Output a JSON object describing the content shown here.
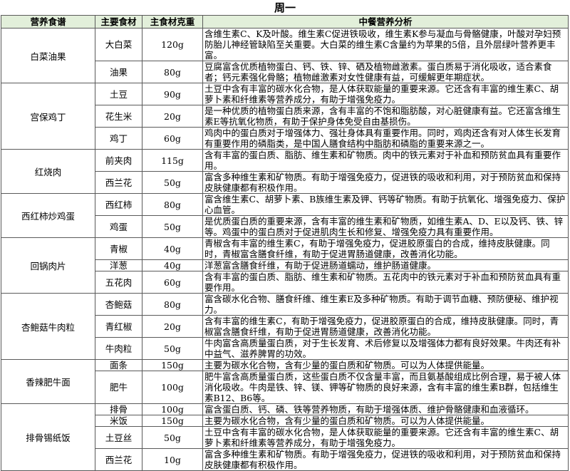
{
  "title": "周一",
  "table": {
    "headers": {
      "dish": "营养食谱",
      "ingredient": "主要食材",
      "weight": "主食材克重",
      "analysis": "中餐营养分析"
    },
    "header_bg_color": "#e2efda",
    "dishes": [
      {
        "name": "白菜油果",
        "ingredients": [
          {
            "name": "大白菜",
            "weight": "120g",
            "analysis": "含维生素C、K及叶酸。维生素C促进铁吸收，维生素K参与凝血与骨骼健康，叶酸对孕妇预防胎儿神经管缺陷至关重要。大白菜的维生素C含量约为苹果的5倍，且外层绿叶营养更丰富。"
          },
          {
            "name": "油果",
            "weight": "80g",
            "analysis": "豆腐富含优质植物蛋白、钙、铁、锌、硒及植物雌激素。蛋白质易于消化吸收，适合素食者；钙元素强化骨骼；植物雌激素对女性健康有益，可缓解更年期症状。"
          }
        ]
      },
      {
        "name": "宫保鸡丁",
        "ingredients": [
          {
            "name": "土豆",
            "weight": "90g",
            "analysis": "土豆中含有丰富的碳水化合物，是人体获取能量的重要来源。它还含有丰富的维生素C、胡萝卜素和纤维素等营养成分，有助于增强免疫力。"
          },
          {
            "name": "花生米",
            "weight": "20g",
            "analysis": "是一种优质的植物蛋白质来源，含有丰富的不饱和脂肪酸，对心脏健康有益。它还富含维生素E等抗氧化物质，有助于保护身体免受自由基损伤。"
          },
          {
            "name": "鸡丁",
            "weight": "60g",
            "analysis": "鸡肉中的蛋白质对于增强体力、强壮身体具有重要作用。同时，鸡肉还含有对人体生长发育有重要作用的磷脂类，是中国人膳食结构中脂肪和磷脂的重要来源之一。"
          }
        ]
      },
      {
        "name": "红烧肉",
        "ingredients": [
          {
            "name": "前夹肉",
            "weight": "115g",
            "analysis": "含有丰富的蛋白质、脂肪、维生素和矿物质。肉中的铁元素对于补血和预防贫血具有重要作用。"
          },
          {
            "name": "西兰花",
            "weight": "50g",
            "analysis": "富含多种维生素和矿物质。有助于增强免疫力，促进铁的吸收和利用，对于预防贫血和保持皮肤健康都有积极作用。"
          }
        ]
      },
      {
        "name": "西红柿炒鸡蛋",
        "ingredients": [
          {
            "name": "西红柿",
            "weight": "80g",
            "analysis": "富含维生素C、胡萝卜素、B族维生素及钾、钙等矿物质。有助于抗氧化、增强免疫力、保护心血管。"
          },
          {
            "name": "鸡蛋",
            "weight": "50g",
            "analysis": "是优质蛋白质的重要来源，含有丰富的维生素和矿物质，如维生素A、D、E以及钙、铁、锌等。鸡蛋中的蛋白质对于促进肌肉生长和修复、增强免疫力具有重要作用。"
          }
        ]
      },
      {
        "name": "回锅肉片",
        "ingredients": [
          {
            "name": "青椒",
            "weight": "40g",
            "analysis": "青椒含有丰富的维生素C，有助于增强免疫力，促进胶原蛋白的合成，维持皮肤健康。同时，青椒富含膳食纤维，有助于促进胃肠道健康，改善消化功能。"
          },
          {
            "name": "洋葱",
            "weight": "40g",
            "analysis": "洋葱富含膳食纤维，有助于促进肠道蠕动，维护肠道健康。"
          },
          {
            "name": "五花肉",
            "weight": "60g",
            "analysis": "含有丰富的蛋白质、脂肪、维生素和矿物质。五花肉中的铁元素对于补血和预防贫血具有重要作用。"
          }
        ]
      },
      {
        "name": "杏鲍菇牛肉粒",
        "ingredients": [
          {
            "name": "杏鲍菇",
            "weight": "80g",
            "analysis": "富含碳水化合物、膳食纤维、维生素E及多种矿物质。有助于调节血糖、预防便秘、维护视力。"
          },
          {
            "name": "青红椒",
            "weight": "20g",
            "analysis": "含有丰富的维生素C，有助于增强免疫力，促进胶原蛋白的合成，维持皮肤健康。同时，青椒富含膳食纤维，有助于促进胃肠道健康，改善消化功能。"
          },
          {
            "name": "牛肉粒",
            "weight": "50g",
            "analysis": "牛肉富含高质量蛋白质，对于生长发育、术后修复以及增强体力都有良好效果。牛肉还有补中益气、滋养脾胃的功效。"
          }
        ]
      },
      {
        "name": "香辣肥牛面",
        "ingredients": [
          {
            "name": "面条",
            "weight": "150g",
            "analysis": "主要为碳水化合物，含有少量的蛋白质和矿物质。可以为人体提供能量。"
          },
          {
            "name": "肥牛",
            "weight": "100g",
            "analysis": "肥牛富含高质量蛋白质，这些蛋白质不仅含量丰富，而且氨基酸组成比例合理，易于被人体消化吸收。牛肉是铁、锌、镁、钾等矿物质的良好来源，含有丰富的维生素B群，包括维生素B12、B6等。"
          }
        ]
      },
      {
        "name": "排骨锡纸饭",
        "ingredients": [
          {
            "name": "排骨",
            "weight": "100g",
            "analysis": "富含蛋白质、钙、磷、铁等营养物质，有助于增强体质、维护骨骼健康和血液循环。"
          },
          {
            "name": "米饭",
            "weight": "150g",
            "analysis": "主要为碳水化合物，含有少量的蛋白质和矿物质。可以为人体提供能量。"
          },
          {
            "name": "土豆丝",
            "weight": "50g",
            "analysis": "土豆中含有丰富的碳水化合物，是人体获取能量的重要来源。它还含有丰富的维生素C、胡萝卜素和纤维素等营养成分，有助于增强免疫力。"
          },
          {
            "name": "西兰花",
            "weight": "10g",
            "analysis": "富含多种维生素和矿物质。有助于增强免疫力，促进铁的吸收和利用，对于预防贫血和保持皮肤健康都有积极作用。"
          }
        ]
      }
    ]
  }
}
